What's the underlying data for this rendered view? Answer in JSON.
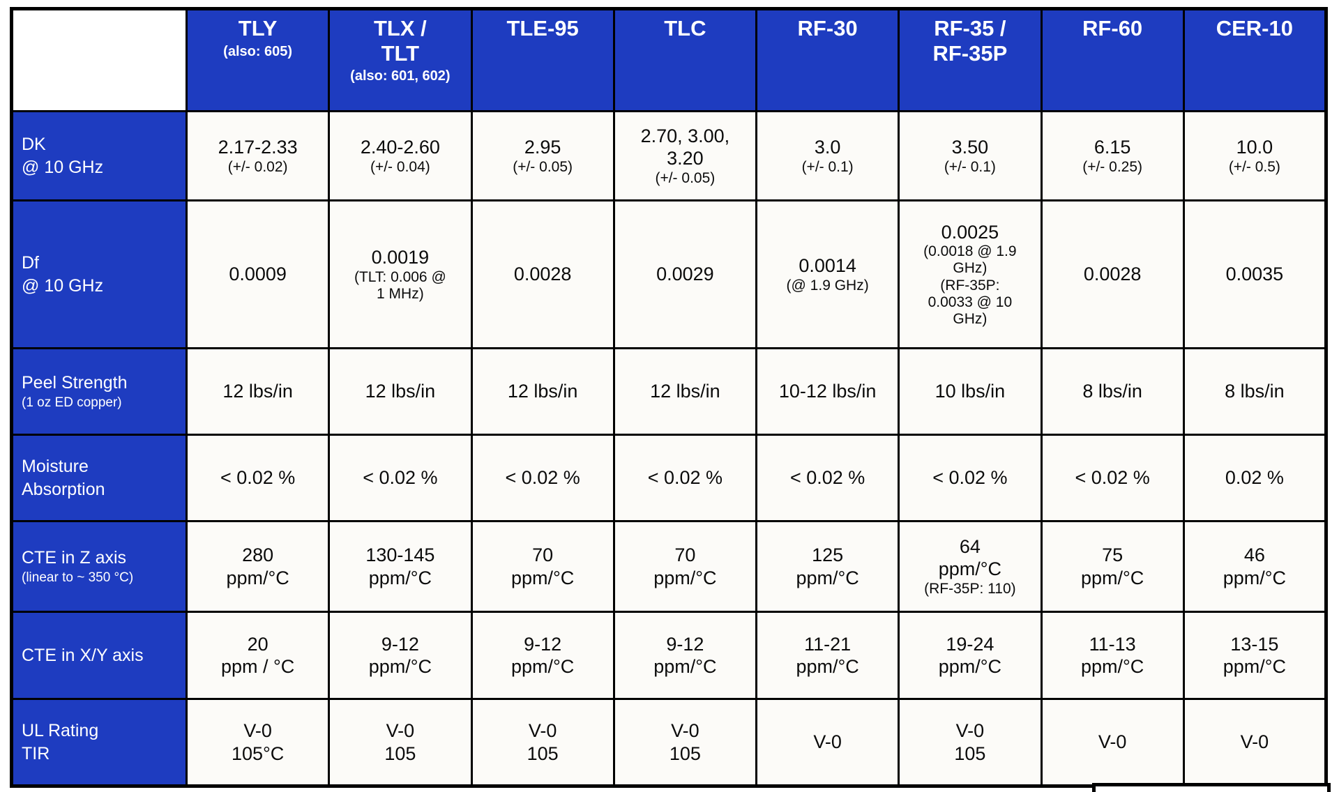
{
  "colors": {
    "table_blue": "#1e3cc0",
    "cell_bg": "#fcfbf8",
    "border_black": "#000000",
    "header_text": "#ffffff",
    "cell_text": "#0b0b0b"
  },
  "table": {
    "corner": "",
    "columns": [
      {
        "main": "TLY",
        "sub": "(also: 605)"
      },
      {
        "main": "TLX /\nTLT",
        "sub": "(also: 601, 602)"
      },
      {
        "main": "TLE-95",
        "sub": ""
      },
      {
        "main": "TLC",
        "sub": ""
      },
      {
        "main": "RF-30",
        "sub": ""
      },
      {
        "main": "RF-35 /\nRF-35P",
        "sub": ""
      },
      {
        "main": "RF-60",
        "sub": ""
      },
      {
        "main": "CER-10",
        "sub": ""
      }
    ],
    "rows": [
      {
        "label": {
          "main": "DK\n@ 10 GHz",
          "sub": ""
        },
        "cells": [
          {
            "main": "2.17-2.33",
            "sub": "(+/- 0.02)"
          },
          {
            "main": "2.40-2.60",
            "sub": "(+/- 0.04)"
          },
          {
            "main": "2.95",
            "sub": "(+/- 0.05)"
          },
          {
            "main": "2.70, 3.00,\n3.20",
            "sub": "(+/- 0.05)"
          },
          {
            "main": "3.0",
            "sub": "(+/- 0.1)"
          },
          {
            "main": "3.50",
            "sub": "(+/- 0.1)"
          },
          {
            "main": "6.15",
            "sub": "(+/- 0.25)"
          },
          {
            "main": "10.0",
            "sub": "(+/- 0.5)"
          }
        ]
      },
      {
        "label": {
          "main": "Df\n@ 10 GHz",
          "sub": ""
        },
        "cells": [
          {
            "main": "0.0009",
            "sub": ""
          },
          {
            "main": "0.0019",
            "sub": "(TLT: 0.006 @\n1 MHz)"
          },
          {
            "main": "0.0028",
            "sub": ""
          },
          {
            "main": "0.0029",
            "sub": ""
          },
          {
            "main": "0.0014",
            "sub": "(@ 1.9 GHz)"
          },
          {
            "main": "0.0025",
            "sub": "(0.0018 @ 1.9\nGHz)\n(RF-35P:\n0.0033 @ 10\nGHz)"
          },
          {
            "main": "0.0028",
            "sub": ""
          },
          {
            "main": "0.0035",
            "sub": ""
          }
        ]
      },
      {
        "label": {
          "main": "Peel Strength",
          "sub": "(1 oz ED copper)"
        },
        "cells": [
          {
            "main": "12 lbs/in",
            "sub": ""
          },
          {
            "main": "12 lbs/in",
            "sub": ""
          },
          {
            "main": "12 lbs/in",
            "sub": ""
          },
          {
            "main": "12 lbs/in",
            "sub": ""
          },
          {
            "main": "10-12 lbs/in",
            "sub": ""
          },
          {
            "main": "10 lbs/in",
            "sub": ""
          },
          {
            "main": "8 lbs/in",
            "sub": ""
          },
          {
            "main": "8 lbs/in",
            "sub": ""
          }
        ]
      },
      {
        "label": {
          "main": "Moisture\nAbsorption",
          "sub": ""
        },
        "cells": [
          {
            "main": "< 0.02 %",
            "sub": ""
          },
          {
            "main": "< 0.02 %",
            "sub": ""
          },
          {
            "main": "< 0.02 %",
            "sub": ""
          },
          {
            "main": "< 0.02 %",
            "sub": ""
          },
          {
            "main": "< 0.02 %",
            "sub": ""
          },
          {
            "main": "< 0.02 %",
            "sub": ""
          },
          {
            "main": "< 0.02 %",
            "sub": ""
          },
          {
            "main": "0.02 %",
            "sub": ""
          }
        ]
      },
      {
        "label": {
          "main": "CTE in Z axis",
          "sub": "(linear to ~ 350 °C)"
        },
        "cells": [
          {
            "main": "280\nppm/°C",
            "sub": ""
          },
          {
            "main": "130-145\nppm/°C",
            "sub": ""
          },
          {
            "main": "70\nppm/°C",
            "sub": ""
          },
          {
            "main": "70\nppm/°C",
            "sub": ""
          },
          {
            "main": "125\nppm/°C",
            "sub": ""
          },
          {
            "main": "64\nppm/°C",
            "sub": "(RF-35P: 110)"
          },
          {
            "main": "75\nppm/°C",
            "sub": ""
          },
          {
            "main": "46\nppm/°C",
            "sub": ""
          }
        ]
      },
      {
        "label": {
          "main": "CTE in X/Y axis",
          "sub": ""
        },
        "cells": [
          {
            "main": "20\nppm / °C",
            "sub": ""
          },
          {
            "main": "9-12\nppm/°C",
            "sub": ""
          },
          {
            "main": "9-12\nppm/°C",
            "sub": ""
          },
          {
            "main": "9-12\nppm/°C",
            "sub": ""
          },
          {
            "main": "11-21\nppm/°C",
            "sub": ""
          },
          {
            "main": "19-24\nppm/°C",
            "sub": ""
          },
          {
            "main": "11-13\nppm/°C",
            "sub": ""
          },
          {
            "main": "13-15\nppm/°C",
            "sub": ""
          }
        ]
      },
      {
        "label": {
          "main": "UL Rating\nTIR",
          "sub": ""
        },
        "cells": [
          {
            "main": "V-0\n105°C",
            "sub": ""
          },
          {
            "main": "V-0\n105",
            "sub": ""
          },
          {
            "main": "V-0\n105",
            "sub": ""
          },
          {
            "main": "V-0\n105",
            "sub": ""
          },
          {
            "main": "V-0",
            "sub": ""
          },
          {
            "main": "V-0\n105",
            "sub": ""
          },
          {
            "main": "V-0",
            "sub": ""
          },
          {
            "main": "V-0",
            "sub": ""
          }
        ]
      }
    ]
  }
}
